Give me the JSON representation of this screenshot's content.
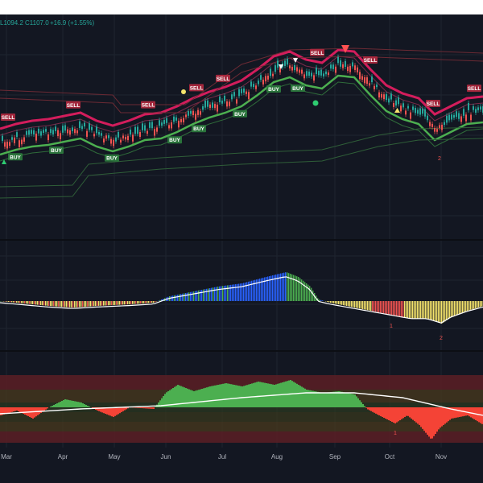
{
  "legend": {
    "low": "L1094.2",
    "close": "C1107.0",
    "change": "+16.9 (+1.55%)"
  },
  "months": [
    "Mar",
    "Apr",
    "May",
    "Jun",
    "Jul",
    "Aug",
    "Sep",
    "Oct",
    "Nov"
  ],
  "signals": [
    {
      "label": "SELL",
      "day": 2
    },
    {
      "label": "BUY",
      "day": 5
    },
    {
      "label": "BUY",
      "day": 22
    },
    {
      "label": "SELL",
      "day": 29
    },
    {
      "label": "BUY",
      "day": 45
    },
    {
      "label": "SELL",
      "day": 60
    },
    {
      "label": "BUY",
      "day": 71
    },
    {
      "label": "SELL",
      "day": 80
    },
    {
      "label": "BUY",
      "day": 81
    },
    {
      "label": "SELL",
      "day": 91
    },
    {
      "label": "BUY",
      "day": 98
    },
    {
      "label": "BUY",
      "day": 112
    },
    {
      "label": "BUY",
      "day": 122
    },
    {
      "label": "SELL",
      "day": 130
    },
    {
      "label": "SELL",
      "day": 152
    },
    {
      "label": "SELL",
      "day": 178
    },
    {
      "label": "SELL",
      "day": 195
    }
  ],
  "wave_numbers": [
    "1",
    "2"
  ],
  "rsi_numbers": [
    "1",
    "2"
  ],
  "colors": {
    "bg": "#131722",
    "up": "#26a69a",
    "down": "#ef5350",
    "sell": "#b2293f",
    "buy": "#2e7d3e",
    "band_red": "#e91e63",
    "band_green": "#4caf50",
    "macd_blue": "#2962ff",
    "macd_yellow": "#f4e36b",
    "rsi_green": "#4caf50",
    "rsi_red": "#f44336"
  }
}
